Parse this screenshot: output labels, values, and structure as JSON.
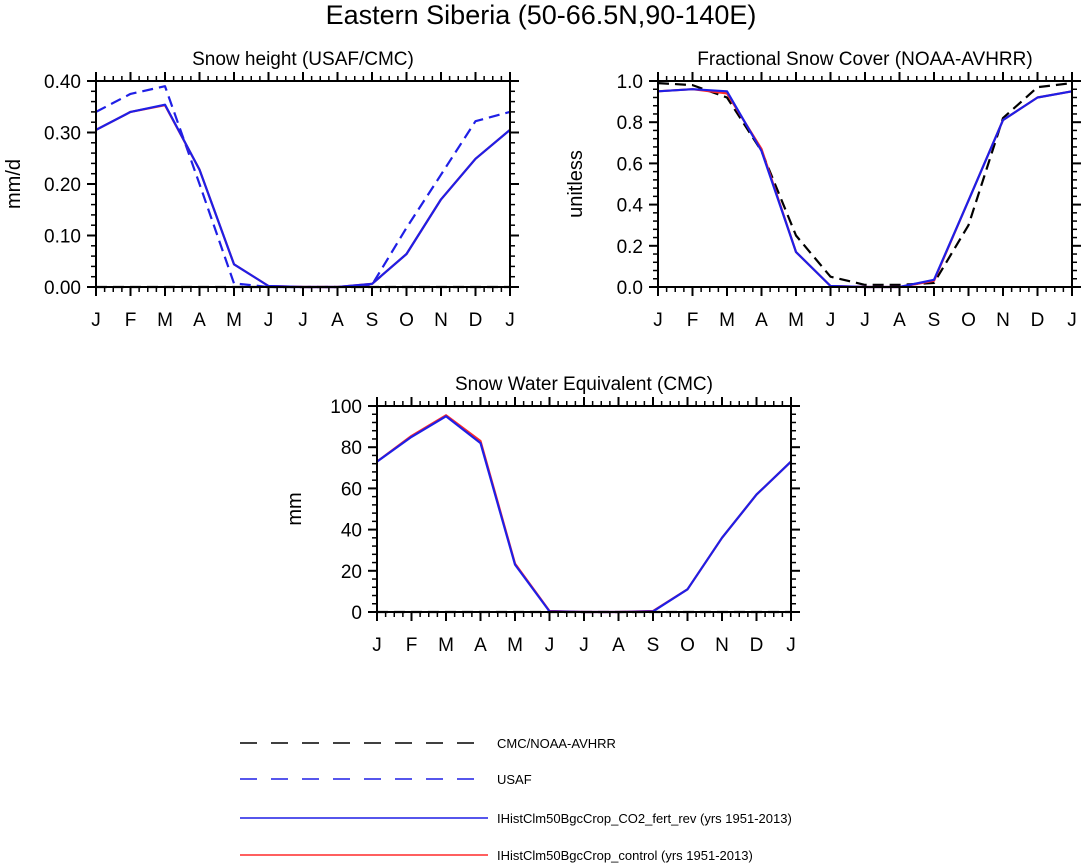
{
  "figure": {
    "title": "Eastern Siberia (50-66.5N,90-140E)"
  },
  "legend": {
    "placement": "bottom-center",
    "items": [
      {
        "label": "CMC/NOAA-AVHRR",
        "color": "#000000",
        "dash": "dashed"
      },
      {
        "label": "USAF",
        "color": "#1f1fe6",
        "dash": "dashed"
      },
      {
        "label": "IHistClm50BgcCrop_CO2_fert_rev (yrs 1951-2013)",
        "color": "#1f1fe6",
        "dash": "solid"
      },
      {
        "label": "IHistClm50BgcCrop_control (yrs 1951-2013)",
        "color": "#ff2a2a",
        "dash": "solid"
      }
    ]
  },
  "chart_data": [
    {
      "type": "line",
      "title": "Snow height (USAF/CMC)",
      "ylabel": "mm/d",
      "xlabel": "",
      "x": [
        "J",
        "F",
        "M",
        "A",
        "M",
        "J",
        "J",
        "A",
        "S",
        "O",
        "N",
        "D",
        "J"
      ],
      "yticks": [
        "0.00",
        "0.10",
        "0.20",
        "0.30",
        "0.40"
      ],
      "ylim": [
        0,
        0.4
      ],
      "grid": false,
      "series": [
        {
          "name": "CMC/NOAA-AVHRR",
          "color": "#000000",
          "dash": "dashed",
          "values": [
            0.0,
            0.0,
            0.0,
            0.0,
            0.0,
            0.0,
            0.0,
            0.0,
            0.0,
            0.0,
            0.0,
            0.0,
            0.0
          ]
        },
        {
          "name": "USAF",
          "color": "#1f1fe6",
          "dash": "dashed",
          "values": [
            0.34,
            0.375,
            0.39,
            0.2,
            0.007,
            0.0,
            0.0,
            0.0,
            0.004,
            0.115,
            0.218,
            0.322,
            0.34
          ]
        },
        {
          "name": "IHistClm50BgcCrop_control (yrs 1951-2013)",
          "color": "#ff2a2a",
          "dash": "solid",
          "values": [
            0.305,
            0.34,
            0.353,
            0.228,
            0.044,
            0.002,
            0.0,
            0.0,
            0.006,
            0.064,
            0.17,
            0.249,
            0.305
          ]
        },
        {
          "name": "IHistClm50BgcCrop_CO2_fert_rev (yrs 1951-2013)",
          "color": "#1f1fe6",
          "dash": "solid",
          "values": [
            0.305,
            0.34,
            0.354,
            0.228,
            0.044,
            0.002,
            0.0,
            0.0,
            0.006,
            0.064,
            0.17,
            0.249,
            0.305
          ]
        }
      ]
    },
    {
      "type": "line",
      "title": "Fractional Snow Cover (NOAA-AVHRR)",
      "ylabel": "unitless",
      "xlabel": "",
      "x": [
        "J",
        "F",
        "M",
        "A",
        "M",
        "J",
        "J",
        "A",
        "S",
        "O",
        "N",
        "D",
        "J"
      ],
      "yticks": [
        "0.0",
        "0.2",
        "0.4",
        "0.6",
        "0.8",
        "1.0"
      ],
      "ylim": [
        0,
        1.0
      ],
      "grid": false,
      "series": [
        {
          "name": "CMC/NOAA-AVHRR",
          "color": "#000000",
          "dash": "dashed",
          "values": [
            0.99,
            0.98,
            0.92,
            0.66,
            0.25,
            0.05,
            0.01,
            0.01,
            0.02,
            0.3,
            0.82,
            0.97,
            0.99
          ]
        },
        {
          "name": "IHistClm50BgcCrop_control (yrs 1951-2013)",
          "color": "#ff2a2a",
          "dash": "solid",
          "values": [
            0.95,
            0.96,
            0.94,
            0.67,
            0.17,
            0.005,
            0.0,
            0.0,
            0.03,
            0.42,
            0.81,
            0.92,
            0.95
          ]
        },
        {
          "name": "IHistClm50BgcCrop_CO2_fert_rev (yrs 1951-2013)",
          "color": "#1f1fe6",
          "dash": "solid",
          "values": [
            0.95,
            0.96,
            0.95,
            0.66,
            0.17,
            0.005,
            0.0,
            0.0,
            0.035,
            0.42,
            0.81,
            0.92,
            0.95
          ]
        }
      ]
    },
    {
      "type": "line",
      "title": "Snow Water Equivalent (CMC)",
      "ylabel": "mm",
      "xlabel": "",
      "x": [
        "J",
        "F",
        "M",
        "A",
        "M",
        "J",
        "J",
        "A",
        "S",
        "O",
        "N",
        "D",
        "J"
      ],
      "yticks": [
        "0",
        "20",
        "40",
        "60",
        "80",
        "100"
      ],
      "ylim": [
        0,
        100
      ],
      "grid": false,
      "series": [
        {
          "name": "CMC/NOAA-AVHRR",
          "color": "#000000",
          "dash": "dashed",
          "values": [
            0,
            0,
            0,
            0,
            0,
            0,
            0,
            0,
            0,
            0,
            0,
            0,
            0
          ]
        },
        {
          "name": "IHistClm50BgcCrop_control (yrs 1951-2013)",
          "color": "#ff2a2a",
          "dash": "solid",
          "values": [
            73,
            85.5,
            95.5,
            83,
            23.5,
            0.5,
            0,
            0,
            0.5,
            11,
            36,
            57,
            73
          ]
        },
        {
          "name": "IHistClm50BgcCrop_CO2_fert_rev (yrs 1951-2013)",
          "color": "#1f1fe6",
          "dash": "solid",
          "values": [
            73,
            85,
            95,
            82,
            23,
            0.3,
            0,
            0,
            0.3,
            11,
            36,
            57,
            73
          ]
        }
      ]
    }
  ]
}
